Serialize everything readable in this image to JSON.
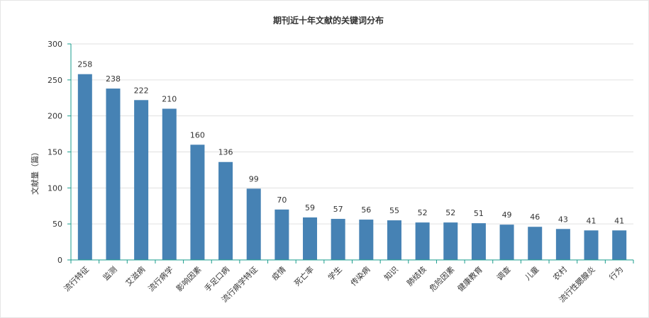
{
  "chart_data": {
    "type": "bar",
    "title": "期刊近十年文献的关键词分布",
    "xlabel": "",
    "ylabel": "文献量（篇）",
    "ylim": [
      0,
      300
    ],
    "yticks": [
      0,
      50,
      100,
      150,
      200,
      250,
      300
    ],
    "grid": true,
    "categories": [
      "流行特征",
      "监测",
      "艾滋病",
      "流行病学",
      "影响因素",
      "手足口病",
      "流行病学特征",
      "疫情",
      "死亡率",
      "学生",
      "传染病",
      "知识",
      "肺结核",
      "危险因素",
      "健康教育",
      "调查",
      "儿童",
      "农村",
      "流行性腮腺炎",
      "行为"
    ],
    "values": [
      258,
      238,
      222,
      210,
      160,
      136,
      99,
      70,
      59,
      57,
      56,
      55,
      52,
      52,
      51,
      49,
      46,
      43,
      41,
      41
    ],
    "colors": {
      "bar": "#4682b4",
      "axis": "#1a9e8c",
      "grid": "#e0e0e0",
      "text": "#333333"
    }
  }
}
